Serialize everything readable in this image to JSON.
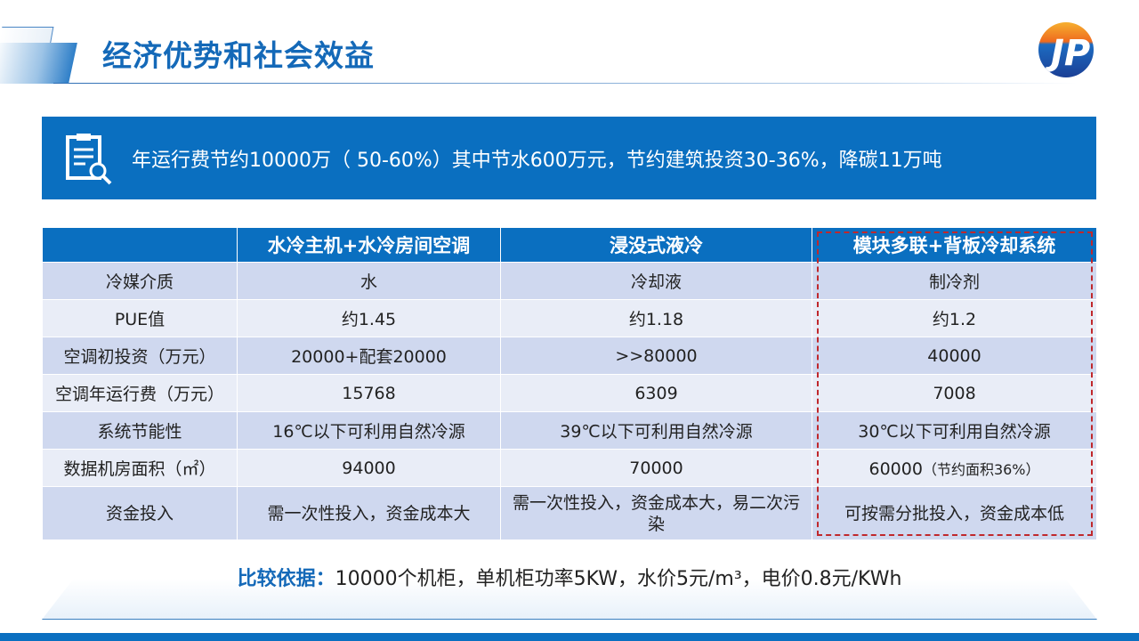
{
  "header": {
    "title": "经济优势和社会效益"
  },
  "banner": {
    "text": "年运行费节约10000万（  50-60%）其中节水600万元，节约建筑投资30-36%，降碳11万吨",
    "icon": "report-search-icon"
  },
  "table": {
    "headers": [
      "",
      "水冷主机+水冷房间空调",
      "浸没式液冷",
      "模块多联+背板冷却系统"
    ],
    "rows": [
      [
        "冷媒介质",
        "水",
        "冷却液",
        "制冷剂"
      ],
      [
        "PUE值",
        "约1.45",
        "约1.18",
        "约1.2"
      ],
      [
        "空调初投资（万元）",
        "20000+配套20000",
        ">>80000",
        "40000"
      ],
      [
        "空调年运行费（万元）",
        "15768",
        "6309",
        "7008"
      ],
      [
        "系统节能性",
        "16℃以下可利用自然冷源",
        "39℃以下可利用自然冷源",
        "30℃以下可利用自然冷源"
      ],
      [
        "数据机房面积（㎡）",
        "94000",
        "70000",
        "60000"
      ],
      [
        "资金投入",
        "需一次性投入，资金成本大",
        "需一次性投入，资金成本大，易二次污染",
        "可按需分批投入，资金成本低"
      ]
    ],
    "note_area": "（节约面积36%）"
  },
  "basis": {
    "label": "比较依据：",
    "text": "10000个机柜，单机柜功率5KW，水价5元/m³，电价0.8元/KWh"
  },
  "colors": {
    "primary": "#0a6fc0",
    "highlight_border": "#c0282c"
  }
}
